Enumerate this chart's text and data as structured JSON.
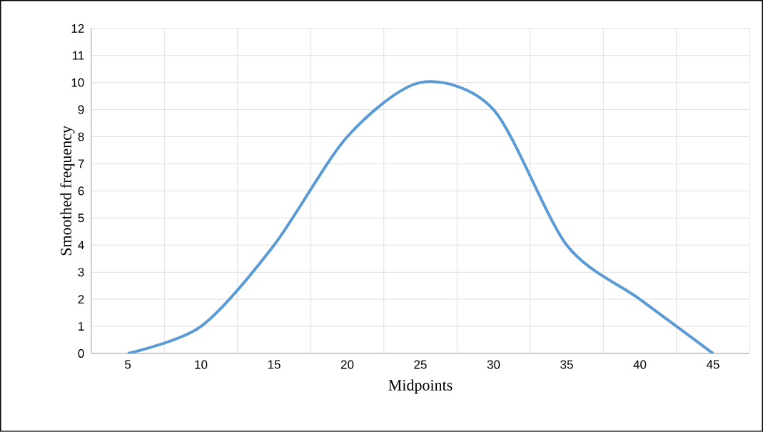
{
  "chart_data": {
    "type": "line",
    "xlabel": "Midpoints",
    "ylabel": "Smoothed frequency",
    "categories": [
      "5",
      "10",
      "15",
      "20",
      "25",
      "30",
      "35",
      "40",
      "45"
    ],
    "series": [
      {
        "color": "#5b9bd5",
        "values": [
          0,
          1,
          4,
          8,
          10,
          9,
          4,
          2,
          0
        ]
      }
    ],
    "ylim": [
      0,
      12
    ],
    "yticks": [
      0,
      1,
      2,
      3,
      4,
      5,
      6,
      7,
      8,
      9,
      10,
      11,
      12
    ],
    "grid": true,
    "marker": "none",
    "line_style": "solid"
  }
}
